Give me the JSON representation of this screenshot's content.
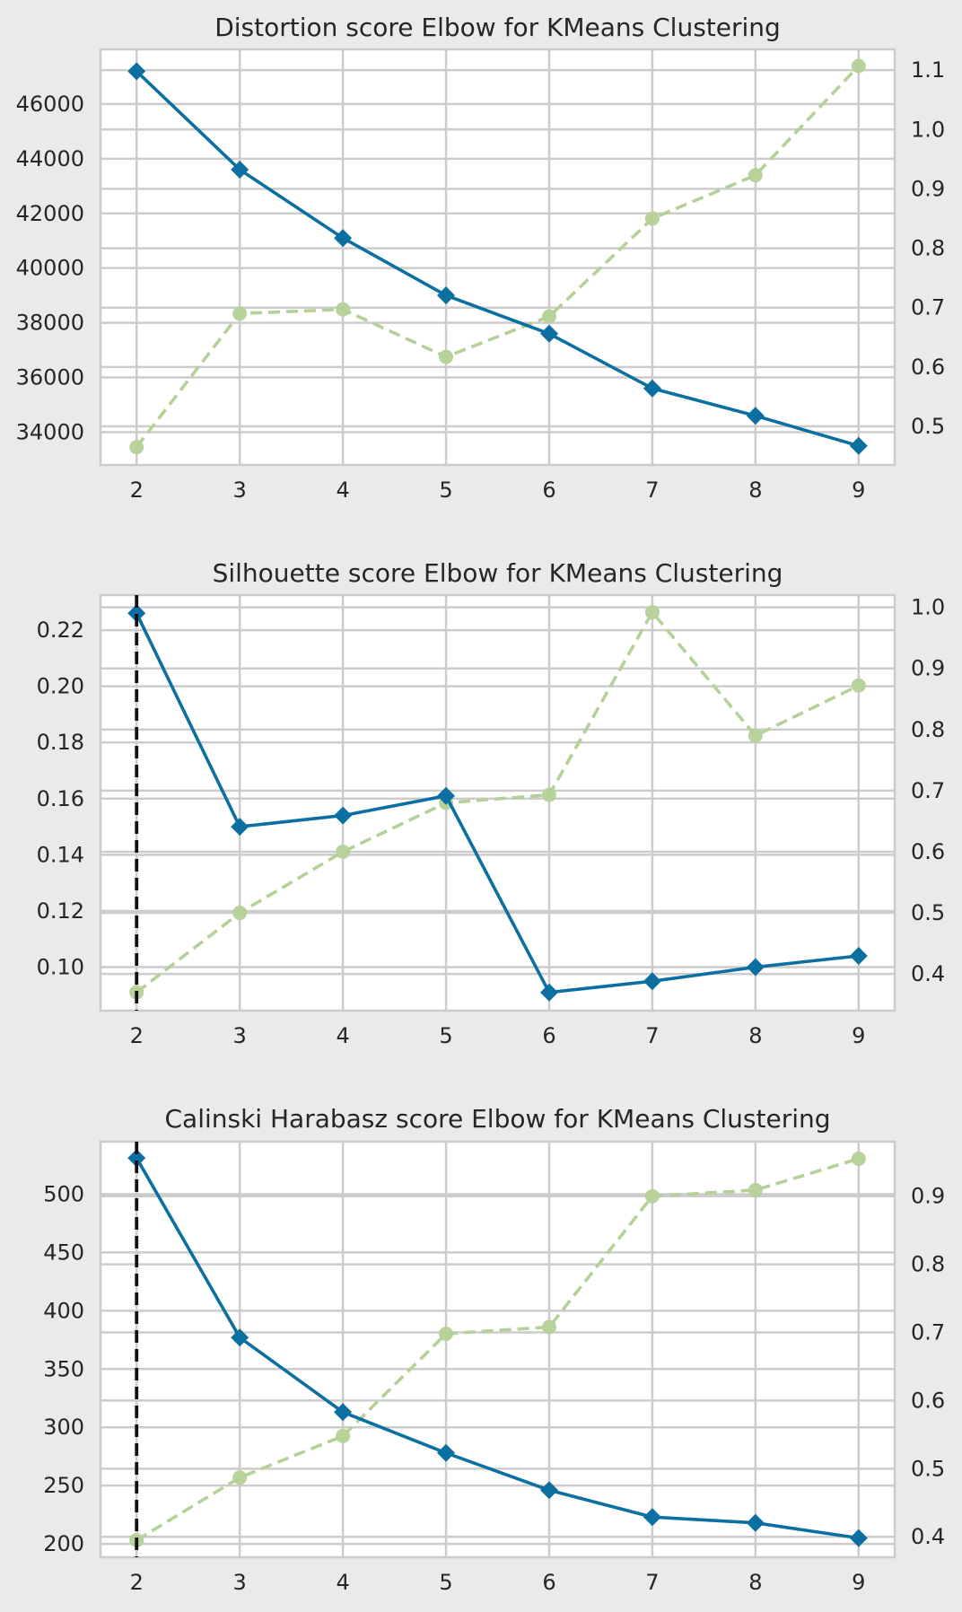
{
  "colors": {
    "background": "#eaeaea",
    "plot_bg": "#ffffff",
    "grid": "#cccccc",
    "score_line": "#0b6fa1",
    "time_line": "#b4d197",
    "elbow_line": "#111111",
    "text": "#262626"
  },
  "chart_data": [
    {
      "type": "line",
      "title": "Distortion score Elbow for KMeans Clustering",
      "x": [
        2,
        3,
        4,
        5,
        6,
        7,
        8,
        9
      ],
      "xticks": [
        "2",
        "3",
        "4",
        "5",
        "6",
        "7",
        "8",
        "9"
      ],
      "xlim": [
        1.65,
        9.35
      ],
      "series": [
        {
          "axis": "left",
          "marker": "diamond",
          "style": "solid",
          "values": [
            47200,
            43600,
            41100,
            39000,
            37600,
            35600,
            34600,
            33500
          ]
        },
        {
          "axis": "right",
          "marker": "circle",
          "style": "dashed",
          "values": [
            0.465,
            0.69,
            0.697,
            0.617,
            0.685,
            0.85,
            0.923,
            1.107
          ]
        }
      ],
      "ylim_left": [
        32800,
        48000
      ],
      "yticks_left": [
        "34000",
        "36000",
        "38000",
        "40000",
        "42000",
        "44000",
        "46000"
      ],
      "ylim_right": [
        0.435,
        1.135
      ],
      "yticks_right": [
        "0.5",
        "0.6",
        "0.7",
        "0.8",
        "0.9",
        "1.0",
        "1.1"
      ],
      "elbow": null,
      "grid": true
    },
    {
      "type": "line",
      "title": "Silhouette score Elbow for KMeans Clustering",
      "x": [
        2,
        3,
        4,
        5,
        6,
        7,
        8,
        9
      ],
      "xticks": [
        "2",
        "3",
        "4",
        "5",
        "6",
        "7",
        "8",
        "9"
      ],
      "xlim": [
        1.65,
        9.35
      ],
      "series": [
        {
          "axis": "left",
          "marker": "diamond",
          "style": "solid",
          "values": [
            0.226,
            0.15,
            0.154,
            0.161,
            0.091,
            0.095,
            0.1,
            0.104
          ]
        },
        {
          "axis": "right",
          "marker": "circle",
          "style": "dashed",
          "values": [
            0.37,
            0.5,
            0.6,
            0.68,
            0.693,
            0.992,
            0.79,
            0.872
          ]
        }
      ],
      "ylim_left": [
        0.0845,
        0.2325
      ],
      "yticks_left": [
        "0.10",
        "0.12",
        "0.14",
        "0.16",
        "0.18",
        "0.20",
        "0.22"
      ],
      "ylim_right": [
        0.34,
        1.02
      ],
      "yticks_right": [
        "0.4",
        "0.5",
        "0.6",
        "0.7",
        "0.8",
        "0.9",
        "1.0"
      ],
      "elbow": 2,
      "grid": true
    },
    {
      "type": "line",
      "title": "Calinski Harabasz score Elbow for KMeans Clustering",
      "x": [
        2,
        3,
        4,
        5,
        6,
        7,
        8,
        9
      ],
      "xticks": [
        "2",
        "3",
        "4",
        "5",
        "6",
        "7",
        "8",
        "9"
      ],
      "xlim": [
        1.65,
        9.35
      ],
      "series": [
        {
          "axis": "left",
          "marker": "diamond",
          "style": "solid",
          "values": [
            531,
            377,
            313,
            278,
            246,
            223,
            218,
            205
          ]
        },
        {
          "axis": "right",
          "marker": "circle",
          "style": "dashed",
          "values": [
            0.395,
            0.487,
            0.548,
            0.698,
            0.708,
            0.9,
            0.909,
            0.955
          ]
        }
      ],
      "ylim_left": [
        188.5,
        545
      ],
      "yticks_left": [
        "200",
        "250",
        "300",
        "350",
        "400",
        "450",
        "500"
      ],
      "ylim_right": [
        0.37,
        0.98
      ],
      "yticks_right": [
        "0.4",
        "0.5",
        "0.6",
        "0.7",
        "0.8",
        "0.9"
      ],
      "elbow": 2,
      "grid": true
    }
  ]
}
